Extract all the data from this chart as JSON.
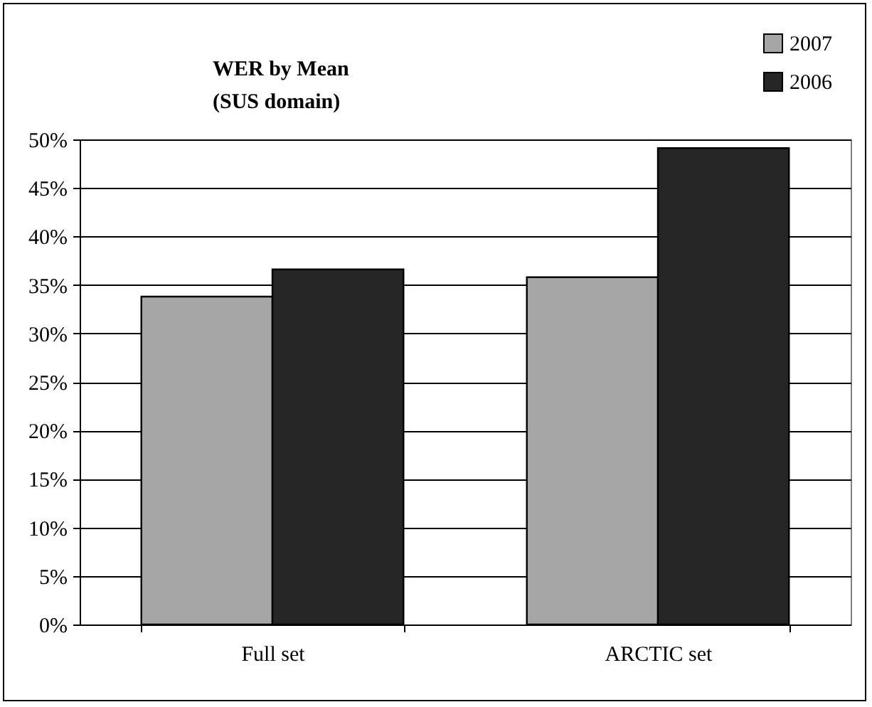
{
  "chart_data": {
    "type": "bar",
    "title": "WER by Mean",
    "subtitle": "(SUS domain)",
    "categories": [
      "Full set",
      "ARCTIC set"
    ],
    "series": [
      {
        "name": "2007",
        "color": "#a6a6a6",
        "values": [
          33.8,
          35.8
        ]
      },
      {
        "name": "2006",
        "color": "#262626",
        "values": [
          36.6,
          49.1
        ]
      }
    ],
    "ylim": [
      0,
      50
    ],
    "yticks": [
      {
        "value": 0,
        "label": "0%"
      },
      {
        "value": 5,
        "label": "5%"
      },
      {
        "value": 10,
        "label": "10%"
      },
      {
        "value": 15,
        "label": "15%"
      },
      {
        "value": 20,
        "label": "20%"
      },
      {
        "value": 25,
        "label": "25%"
      },
      {
        "value": 30,
        "label": "30%"
      },
      {
        "value": 35,
        "label": "35%"
      },
      {
        "value": 40,
        "label": "40%"
      },
      {
        "value": 45,
        "label": "45%"
      },
      {
        "value": 50,
        "label": "50%"
      }
    ],
    "grid": "y",
    "legend": "top right"
  }
}
